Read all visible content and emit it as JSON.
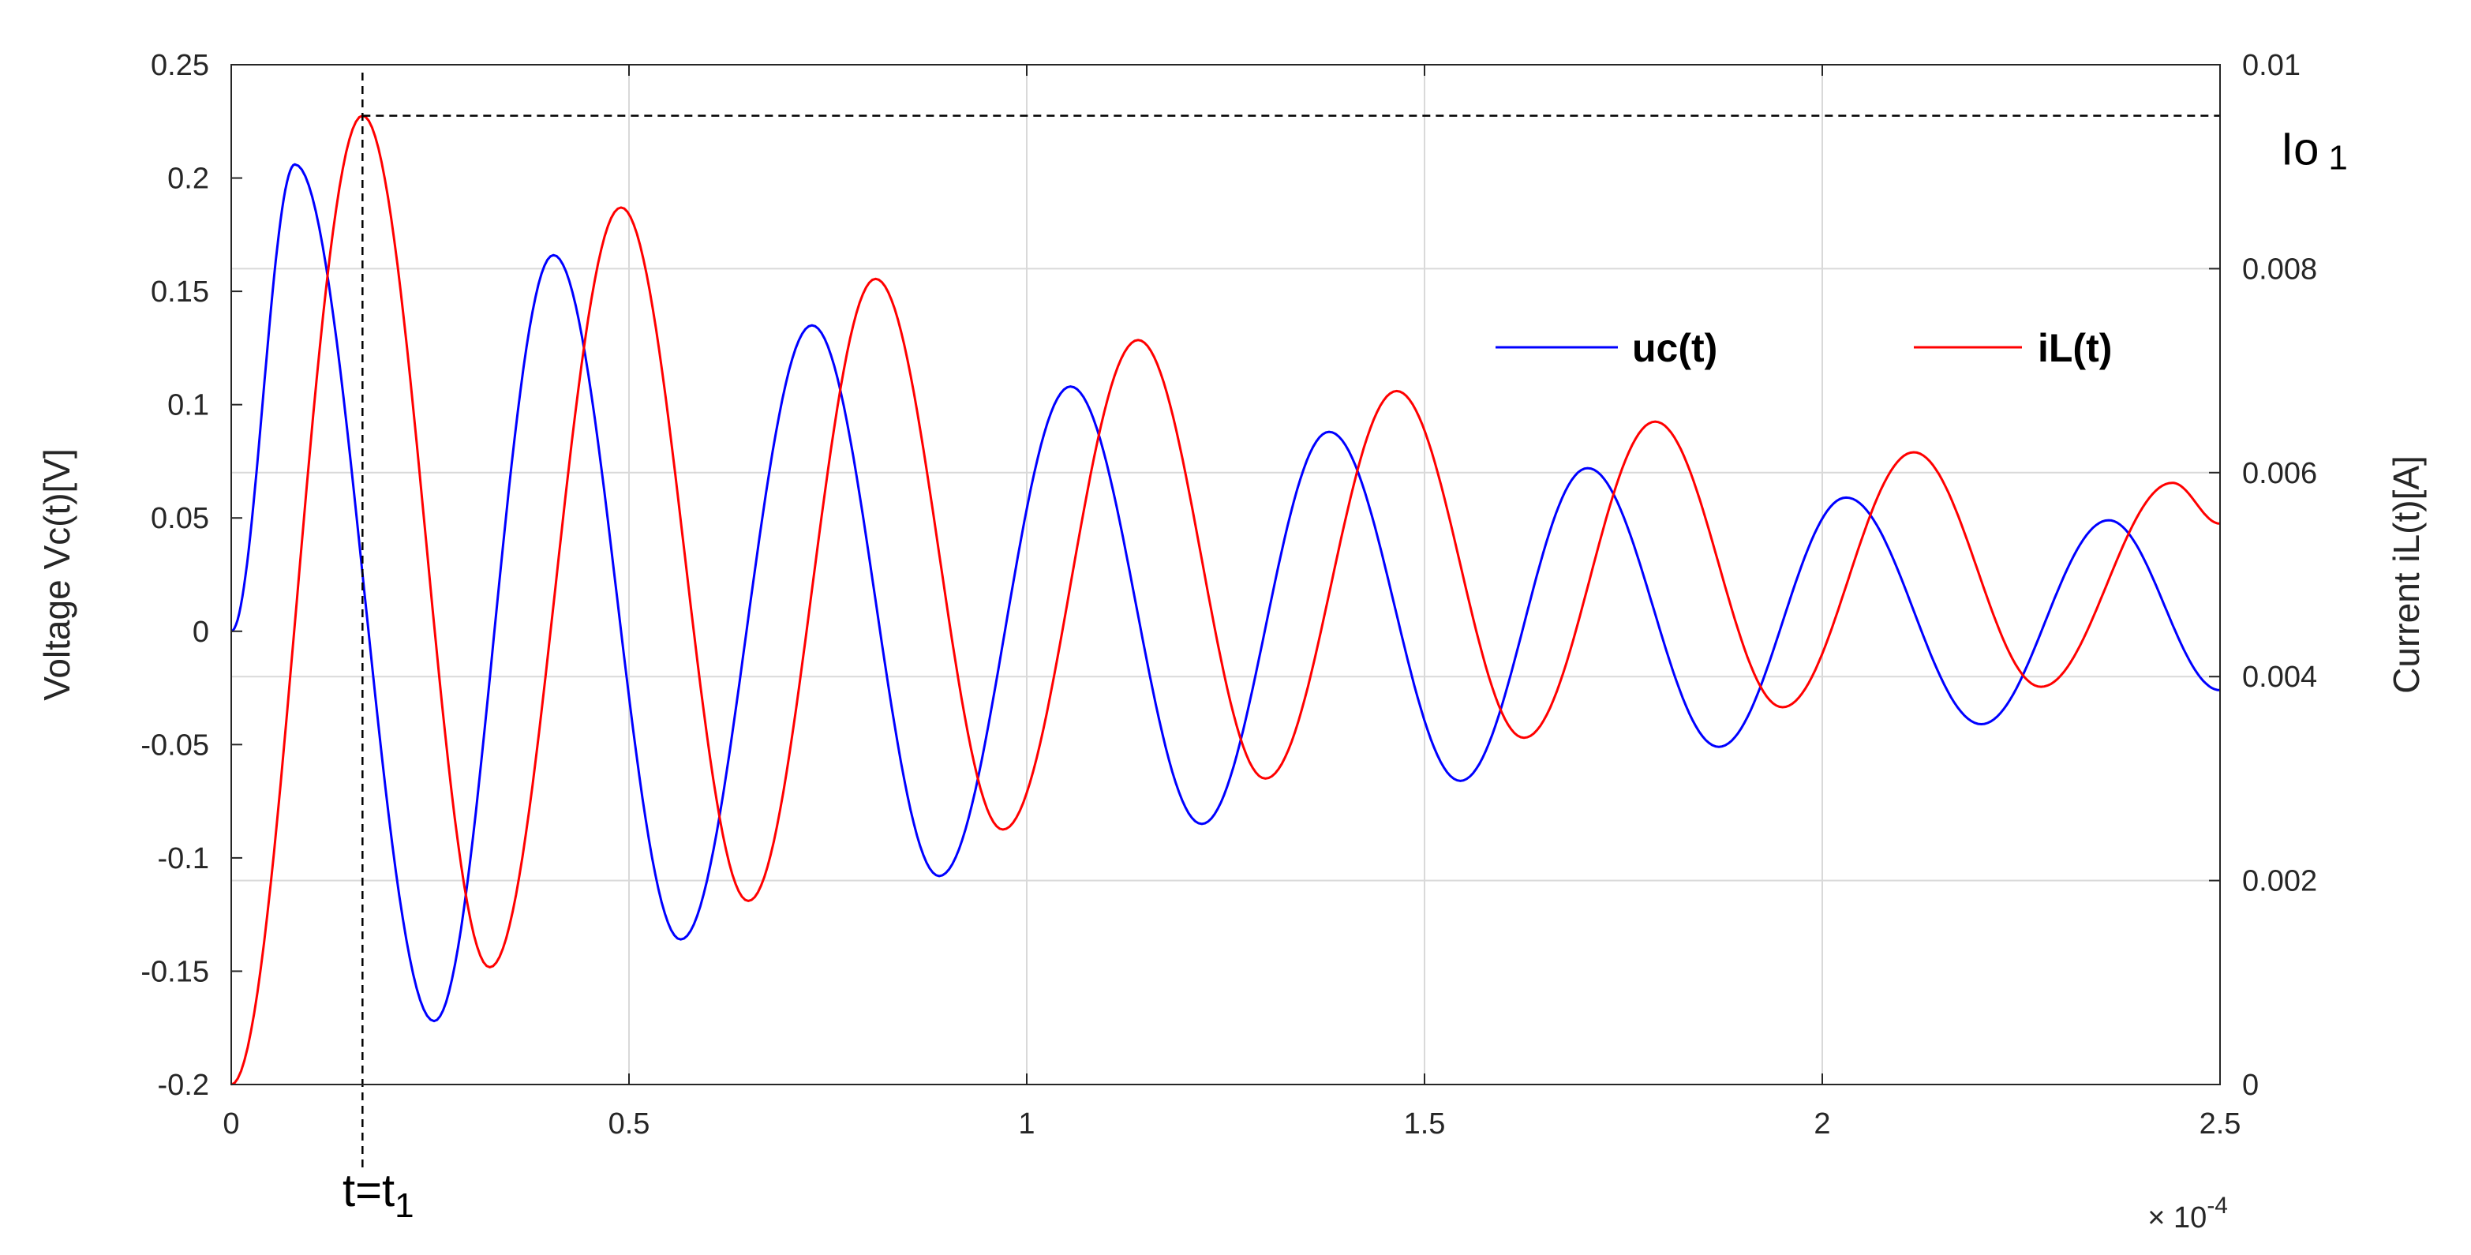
{
  "chart_data": {
    "type": "line",
    "xlabel": "",
    "x_exponent_label": "× 10",
    "x_exponent_power": "-4",
    "x_scale": 0.0001,
    "ylabel_left": "Voltage Vc(t)[V]",
    "ylabel_right": "Current iL(t)[A]",
    "xlim": [
      0,
      2.5
    ],
    "ylim_left": [
      -0.2,
      0.25
    ],
    "ylim_right": [
      0,
      0.01
    ],
    "grid": true,
    "legend_position": "upper-right",
    "x_ticks": [
      "0",
      "0.5",
      "1",
      "1.5",
      "2",
      "2.5"
    ],
    "y_left_ticks": [
      "-0.2",
      "-0.15",
      "-0.1",
      "-0.05",
      "0",
      "0.05",
      "0.1",
      "0.15",
      "0.2",
      "0.25"
    ],
    "y_right_ticks": [
      "0",
      "0.002",
      "0.004",
      "0.006",
      "0.008",
      "0.01"
    ],
    "series": [
      {
        "name": "uc(t)",
        "axis": "left",
        "color": "#0000ff",
        "peaks": [
          {
            "x": 0.08,
            "y": 0.206
          },
          {
            "x": 0.255,
            "y": -0.172
          },
          {
            "x": 0.405,
            "y": 0.166
          },
          {
            "x": 0.565,
            "y": -0.136
          },
          {
            "x": 0.73,
            "y": 0.135
          },
          {
            "x": 0.89,
            "y": -0.108
          },
          {
            "x": 1.055,
            "y": 0.108
          },
          {
            "x": 1.22,
            "y": -0.085
          },
          {
            "x": 1.38,
            "y": 0.088
          },
          {
            "x": 1.545,
            "y": -0.066
          },
          {
            "x": 1.705,
            "y": 0.072
          },
          {
            "x": 1.87,
            "y": -0.051
          },
          {
            "x": 2.03,
            "y": 0.059
          },
          {
            "x": 2.2,
            "y": -0.041
          },
          {
            "x": 2.36,
            "y": 0.049
          }
        ],
        "start": {
          "x": 0,
          "y": 0
        },
        "end": {
          "x": 2.5,
          "y": -0.026
        }
      },
      {
        "name": "iL(t)",
        "axis": "right",
        "color": "#ff0000",
        "peaks": [
          {
            "x": 0.165,
            "y": 0.0095
          },
          {
            "x": 0.325,
            "y": 0.00115
          },
          {
            "x": 0.49,
            "y": 0.0086
          },
          {
            "x": 0.65,
            "y": 0.0018
          },
          {
            "x": 0.81,
            "y": 0.0079
          },
          {
            "x": 0.97,
            "y": 0.0025
          },
          {
            "x": 1.14,
            "y": 0.0073
          },
          {
            "x": 1.3,
            "y": 0.003
          },
          {
            "x": 1.465,
            "y": 0.0068
          },
          {
            "x": 1.625,
            "y": 0.0034
          },
          {
            "x": 1.79,
            "y": 0.0065
          },
          {
            "x": 1.95,
            "y": 0.0037
          },
          {
            "x": 2.115,
            "y": 0.0062
          },
          {
            "x": 2.275,
            "y": 0.0039
          },
          {
            "x": 2.44,
            "y": 0.0059
          }
        ],
        "start": {
          "x": 0,
          "y": 0
        },
        "end": {
          "x": 2.5,
          "y": 0.0055
        }
      }
    ],
    "annotations": {
      "t1_label": "t=t",
      "t1_sub": "1",
      "t1_x": 0.165,
      "io_label": "Io",
      "io_sub": "1",
      "io_value": 0.0095
    }
  }
}
